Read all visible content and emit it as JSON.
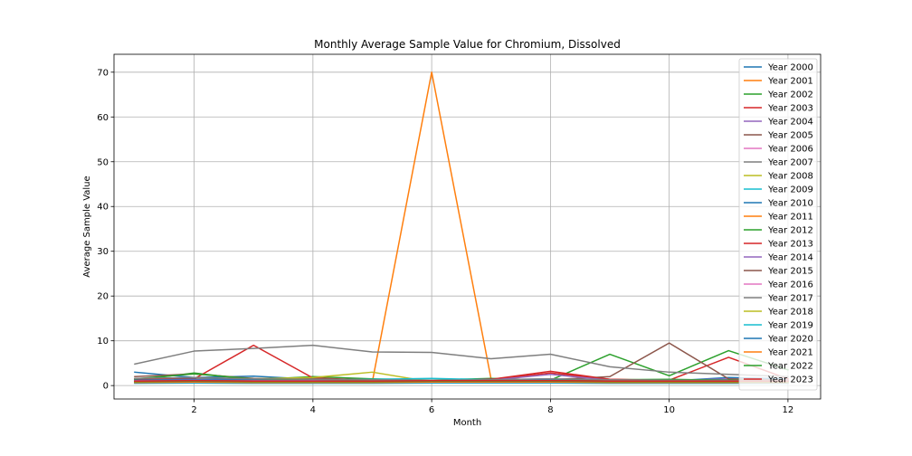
{
  "chart_data": {
    "type": "line",
    "title": "Monthly Average Sample Value for Chromium, Dissolved",
    "xlabel": "Month",
    "ylabel": "Average Sample Value",
    "xlim": [
      0.65,
      12.55
    ],
    "ylim": [
      -3,
      74
    ],
    "xticks": [
      2,
      4,
      6,
      8,
      10,
      12
    ],
    "yticks": [
      0,
      10,
      20,
      30,
      40,
      50,
      60,
      70
    ],
    "grid": true,
    "legend_position": "upper right",
    "x": [
      1,
      2,
      3,
      4,
      5,
      6,
      7,
      8,
      9,
      10,
      11,
      12
    ],
    "series": [
      {
        "name": "Year 2000",
        "color": "#1f77b4",
        "values": [
          3.0,
          1.8,
          2.1,
          1.4,
          1.3,
          1.2,
          1.3,
          1.5,
          1.1,
          1.0,
          1.8,
          1.5
        ]
      },
      {
        "name": "Year 2001",
        "color": "#ff7f0e",
        "values": [
          1.5,
          1.5,
          1.3,
          1.2,
          0.8,
          70.0,
          1.5,
          1.3,
          1.2,
          1.1,
          1.2,
          1.0
        ]
      },
      {
        "name": "Year 2002",
        "color": "#2ca02c",
        "values": [
          1.2,
          2.8,
          1.3,
          2.0,
          1.5,
          1.2,
          1.6,
          1.2,
          7.0,
          2.2,
          7.8,
          3.5
        ]
      },
      {
        "name": "Year 2003",
        "color": "#d62728",
        "values": [
          1.5,
          1.5,
          9.0,
          1.7,
          1.2,
          1.1,
          1.4,
          3.2,
          1.4,
          1.2,
          6.3,
          1.5
        ]
      },
      {
        "name": "Year 2004",
        "color": "#9467bd",
        "values": [
          1.0,
          1.2,
          1.3,
          1.2,
          1.2,
          1.0,
          1.0,
          1.2,
          1.0,
          1.1,
          1.5,
          1.2
        ]
      },
      {
        "name": "Year 2005",
        "color": "#8c564b",
        "values": [
          2.0,
          2.6,
          1.6,
          1.5,
          1.3,
          1.1,
          1.5,
          1.3,
          2.0,
          9.5,
          1.5,
          1.2
        ]
      },
      {
        "name": "Year 2006",
        "color": "#e377c2",
        "values": [
          1.0,
          1.0,
          1.1,
          1.0,
          0.9,
          0.9,
          1.0,
          1.0,
          1.0,
          0.9,
          1.0,
          0.9
        ]
      },
      {
        "name": "Year 2007",
        "color": "#7f7f7f",
        "values": [
          4.8,
          7.7,
          8.3,
          9.0,
          7.5,
          7.4,
          6.0,
          7.0,
          4.2,
          3.0,
          2.5,
          2.0
        ]
      },
      {
        "name": "Year 2008",
        "color": "#bcbd22",
        "values": [
          1.0,
          1.2,
          1.5,
          1.8,
          3.0,
          0.8,
          1.2,
          1.0,
          0.9,
          0.8,
          0.8,
          0.9
        ]
      },
      {
        "name": "Year 2009",
        "color": "#17becf",
        "values": [
          0.9,
          1.0,
          1.1,
          1.2,
          1.4,
          1.6,
          1.3,
          1.2,
          1.0,
          0.9,
          0.8,
          0.9
        ]
      },
      {
        "name": "Year 2010",
        "color": "#1f77b4",
        "values": [
          1.2,
          1.4,
          1.4,
          1.3,
          1.1,
          1.0,
          1.2,
          1.3,
          1.3,
          1.1,
          1.0,
          1.0
        ]
      },
      {
        "name": "Year 2011",
        "color": "#ff7f0e",
        "values": [
          0.8,
          0.9,
          0.8,
          0.8,
          0.7,
          0.8,
          0.9,
          0.9,
          1.0,
          0.9,
          0.8,
          0.8
        ]
      },
      {
        "name": "Year 2012",
        "color": "#2ca02c",
        "values": [
          1.5,
          2.6,
          1.5,
          1.3,
          1.2,
          1.0,
          1.1,
          1.1,
          1.3,
          1.4,
          1.2,
          1.0
        ]
      },
      {
        "name": "Year 2013",
        "color": "#d62728",
        "values": [
          0.9,
          0.9,
          0.9,
          0.9,
          0.7,
          0.9,
          1.3,
          2.8,
          1.4,
          1.1,
          1.0,
          1.0
        ]
      },
      {
        "name": "Year 2014",
        "color": "#9467bd",
        "values": [
          1.1,
          1.2,
          1.1,
          1.1,
          1.0,
          1.1,
          1.2,
          2.5,
          1.2,
          1.0,
          1.0,
          1.0
        ]
      },
      {
        "name": "Year 2015",
        "color": "#8c564b",
        "values": [
          1.0,
          1.1,
          1.0,
          1.0,
          0.9,
          1.0,
          1.0,
          1.1,
          1.0,
          1.0,
          0.9,
          0.9
        ]
      },
      {
        "name": "Year 2016",
        "color": "#e377c2",
        "values": [
          0.8,
          0.9,
          0.8,
          0.8,
          0.8,
          0.9,
          0.9,
          0.9,
          0.9,
          0.8,
          0.8,
          0.8
        ]
      },
      {
        "name": "Year 2017",
        "color": "#7f7f7f",
        "values": [
          1.6,
          1.8,
          1.5,
          1.4,
          1.3,
          1.2,
          1.3,
          1.5,
          1.3,
          1.2,
          1.1,
          1.1
        ]
      },
      {
        "name": "Year 2018",
        "color": "#bcbd22",
        "values": [
          0.7,
          0.8,
          0.7,
          0.7,
          0.7,
          0.8,
          0.8,
          0.8,
          0.7,
          0.7,
          0.7,
          0.7
        ]
      },
      {
        "name": "Year 2019",
        "color": "#17becf",
        "values": [
          0.5,
          0.6,
          0.5,
          0.5,
          0.5,
          0.6,
          0.6,
          0.6,
          0.5,
          0.5,
          0.5,
          0.5
        ]
      },
      {
        "name": "Year 2020",
        "color": "#1f77b4",
        "values": [
          0.6,
          0.7,
          0.6,
          0.6,
          0.6,
          0.7,
          0.7,
          0.7,
          0.6,
          0.6,
          0.6,
          0.6
        ]
      },
      {
        "name": "Year 2021",
        "color": "#ff7f0e",
        "values": [
          0.7,
          0.8,
          0.7,
          0.7,
          0.7,
          0.8,
          0.8,
          0.8,
          0.7,
          0.7,
          0.7,
          0.7
        ]
      },
      {
        "name": "Year 2022",
        "color": "#2ca02c",
        "values": [
          0.9,
          1.0,
          0.9,
          0.9,
          0.9,
          1.0,
          1.0,
          1.0,
          0.9,
          0.9,
          0.9,
          0.9
        ]
      },
      {
        "name": "Year 2023",
        "color": "#d62728",
        "values": [
          1.0,
          1.1,
          1.0,
          1.0,
          1.0,
          1.1,
          1.1,
          1.1,
          1.0,
          1.0,
          1.0,
          1.0
        ]
      }
    ]
  }
}
